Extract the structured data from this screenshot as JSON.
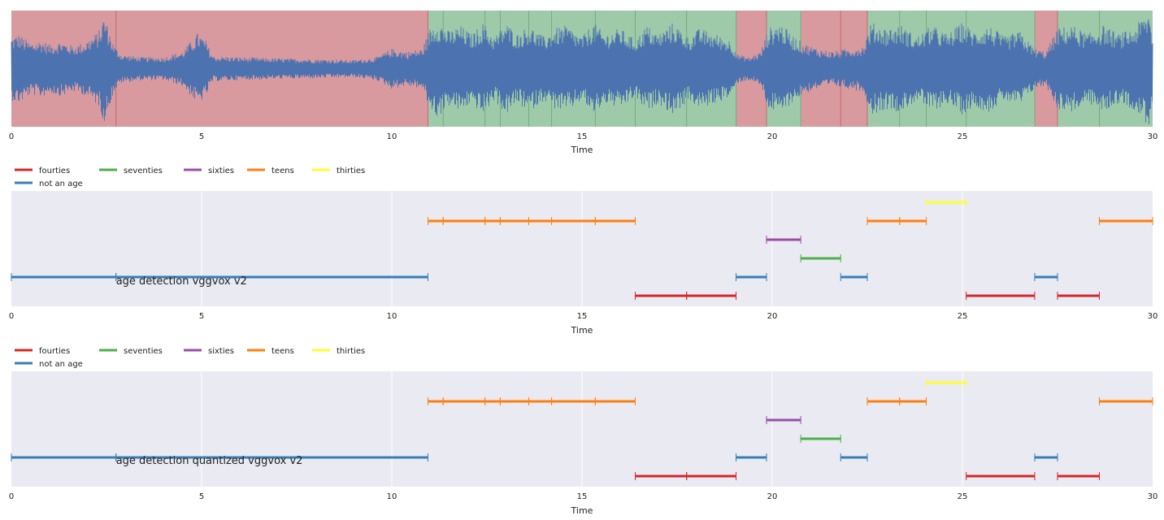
{
  "chart_data": [
    {
      "type": "area",
      "panel": "waveform",
      "xlabel": "Time",
      "xlim": [
        0,
        30
      ],
      "xticks": [
        0,
        5,
        10,
        15,
        20,
        25,
        30
      ],
      "colors": {
        "not_speech": "#d89a9e",
        "speech": "#9fcaa9",
        "wave": "#4c72b0"
      },
      "regions": [
        {
          "start": 0.0,
          "end": 10.95,
          "kind": "not_speech"
        },
        {
          "start": 10.95,
          "end": 19.05,
          "kind": "speech"
        },
        {
          "start": 19.05,
          "end": 19.85,
          "kind": "not_speech"
        },
        {
          "start": 19.85,
          "end": 20.75,
          "kind": "speech"
        },
        {
          "start": 20.75,
          "end": 22.5,
          "kind": "not_speech"
        },
        {
          "start": 22.5,
          "end": 26.9,
          "kind": "speech"
        },
        {
          "start": 26.9,
          "end": 27.5,
          "kind": "not_speech"
        },
        {
          "start": 27.5,
          "end": 30.0,
          "kind": "speech"
        }
      ],
      "boundaries": [
        2.75,
        10.95,
        11.35,
        12.45,
        12.85,
        13.6,
        14.2,
        15.35,
        16.4,
        17.75,
        19.05,
        19.85,
        20.75,
        21.8,
        22.5,
        23.35,
        24.05,
        25.1,
        26.9,
        27.5,
        28.6
      ],
      "envelope": [
        [
          0.0,
          0.55
        ],
        [
          0.2,
          0.6
        ],
        [
          0.5,
          0.45
        ],
        [
          0.8,
          0.5
        ],
        [
          1.0,
          0.42
        ],
        [
          1.3,
          0.48
        ],
        [
          1.6,
          0.4
        ],
        [
          1.9,
          0.45
        ],
        [
          2.1,
          0.55
        ],
        [
          2.3,
          0.65
        ],
        [
          2.45,
          0.95
        ],
        [
          2.55,
          0.7
        ],
        [
          2.7,
          0.4
        ],
        [
          2.9,
          0.25
        ],
        [
          3.2,
          0.22
        ],
        [
          3.5,
          0.2
        ],
        [
          4.0,
          0.2
        ],
        [
          4.5,
          0.3
        ],
        [
          4.9,
          0.62
        ],
        [
          5.1,
          0.5
        ],
        [
          5.3,
          0.22
        ],
        [
          6.0,
          0.2
        ],
        [
          7.0,
          0.18
        ],
        [
          8.0,
          0.17
        ],
        [
          9.0,
          0.15
        ],
        [
          9.6,
          0.2
        ],
        [
          10.0,
          0.35
        ],
        [
          10.4,
          0.3
        ],
        [
          10.8,
          0.35
        ],
        [
          11.0,
          0.7
        ],
        [
          11.2,
          0.85
        ],
        [
          11.5,
          0.65
        ],
        [
          11.8,
          0.75
        ],
        [
          12.1,
          0.6
        ],
        [
          12.4,
          0.8
        ],
        [
          12.7,
          0.55
        ],
        [
          13.0,
          0.8
        ],
        [
          13.3,
          0.6
        ],
        [
          13.6,
          0.75
        ],
        [
          14.0,
          0.55
        ],
        [
          14.3,
          0.7
        ],
        [
          14.6,
          0.75
        ],
        [
          15.0,
          0.55
        ],
        [
          15.3,
          0.8
        ],
        [
          15.6,
          0.6
        ],
        [
          16.0,
          0.7
        ],
        [
          16.4,
          0.5
        ],
        [
          16.7,
          0.75
        ],
        [
          17.0,
          0.6
        ],
        [
          17.4,
          0.8
        ],
        [
          17.8,
          0.55
        ],
        [
          18.1,
          0.7
        ],
        [
          18.5,
          0.6
        ],
        [
          18.9,
          0.5
        ],
        [
          19.1,
          0.25
        ],
        [
          19.4,
          0.2
        ],
        [
          19.7,
          0.3
        ],
        [
          19.9,
          0.7
        ],
        [
          20.2,
          0.8
        ],
        [
          20.5,
          0.6
        ],
        [
          20.8,
          0.45
        ],
        [
          21.2,
          0.35
        ],
        [
          21.6,
          0.3
        ],
        [
          22.0,
          0.35
        ],
        [
          22.4,
          0.4
        ],
        [
          22.6,
          0.8
        ],
        [
          23.0,
          0.7
        ],
        [
          23.4,
          0.75
        ],
        [
          23.8,
          0.55
        ],
        [
          24.2,
          0.75
        ],
        [
          24.6,
          0.6
        ],
        [
          25.0,
          0.8
        ],
        [
          25.3,
          0.65
        ],
        [
          25.7,
          0.75
        ],
        [
          26.1,
          0.55
        ],
        [
          26.5,
          0.65
        ],
        [
          26.9,
          0.35
        ],
        [
          27.2,
          0.3
        ],
        [
          27.5,
          0.7
        ],
        [
          27.9,
          0.75
        ],
        [
          28.3,
          0.6
        ],
        [
          28.7,
          0.75
        ],
        [
          29.1,
          0.6
        ],
        [
          29.5,
          0.7
        ],
        [
          29.9,
          1.0
        ],
        [
          30.0,
          0.6
        ]
      ]
    },
    {
      "type": "segments",
      "panel": "age-detection-vggvox-v2",
      "title": "age detection vggvox v2",
      "xlabel": "Time",
      "xlim": [
        0,
        30
      ],
      "xticks": [
        0,
        5,
        10,
        15,
        20,
        25,
        30
      ],
      "legend": [
        {
          "label": "fourties",
          "color": "#d62728"
        },
        {
          "label": "seventies",
          "color": "#4daf4a"
        },
        {
          "label": "sixties",
          "color": "#984ea3"
        },
        {
          "label": "teens",
          "color": "#ff7f0e"
        },
        {
          "label": "thirties",
          "color": "#ffff33"
        },
        {
          "label": "not an age",
          "color": "#377eb8"
        }
      ],
      "rows": [
        "thirties",
        "teens",
        "sixties",
        "seventies",
        "not an age",
        "fourties"
      ],
      "segments": [
        {
          "label": "thirties",
          "start": 24.05,
          "end": 25.1
        },
        {
          "label": "teens",
          "start": 10.95,
          "end": 11.35
        },
        {
          "label": "teens",
          "start": 11.35,
          "end": 12.45
        },
        {
          "label": "teens",
          "start": 12.45,
          "end": 12.85
        },
        {
          "label": "teens",
          "start": 12.85,
          "end": 13.6
        },
        {
          "label": "teens",
          "start": 13.6,
          "end": 14.2
        },
        {
          "label": "teens",
          "start": 14.2,
          "end": 15.35
        },
        {
          "label": "teens",
          "start": 15.35,
          "end": 16.4
        },
        {
          "label": "teens",
          "start": 22.5,
          "end": 23.35
        },
        {
          "label": "teens",
          "start": 23.35,
          "end": 24.05
        },
        {
          "label": "teens",
          "start": 28.6,
          "end": 30.0
        },
        {
          "label": "sixties",
          "start": 19.85,
          "end": 20.75
        },
        {
          "label": "seventies",
          "start": 20.75,
          "end": 21.8
        },
        {
          "label": "not an age",
          "start": 0.0,
          "end": 2.75
        },
        {
          "label": "not an age",
          "start": 2.75,
          "end": 10.95
        },
        {
          "label": "not an age",
          "start": 19.05,
          "end": 19.85
        },
        {
          "label": "not an age",
          "start": 21.8,
          "end": 22.5
        },
        {
          "label": "not an age",
          "start": 26.9,
          "end": 27.5
        },
        {
          "label": "fourties",
          "start": 16.4,
          "end": 17.75
        },
        {
          "label": "fourties",
          "start": 17.75,
          "end": 19.05
        },
        {
          "label": "fourties",
          "start": 25.1,
          "end": 26.9
        },
        {
          "label": "fourties",
          "start": 27.5,
          "end": 28.6
        }
      ]
    },
    {
      "type": "segments",
      "panel": "age-detection-quantized-vggvox-v2",
      "title": "age detection quantized vggvox v2",
      "xlabel": "Time",
      "xlim": [
        0,
        30
      ],
      "xticks": [
        0,
        5,
        10,
        15,
        20,
        25,
        30
      ],
      "legend": [
        {
          "label": "fourties",
          "color": "#d62728"
        },
        {
          "label": "seventies",
          "color": "#4daf4a"
        },
        {
          "label": "sixties",
          "color": "#984ea3"
        },
        {
          "label": "teens",
          "color": "#ff7f0e"
        },
        {
          "label": "thirties",
          "color": "#ffff33"
        },
        {
          "label": "not an age",
          "color": "#377eb8"
        }
      ],
      "rows": [
        "thirties",
        "teens",
        "sixties",
        "seventies",
        "not an age",
        "fourties"
      ],
      "segments": [
        {
          "label": "thirties",
          "start": 24.05,
          "end": 25.1
        },
        {
          "label": "teens",
          "start": 10.95,
          "end": 11.35
        },
        {
          "label": "teens",
          "start": 11.35,
          "end": 12.45
        },
        {
          "label": "teens",
          "start": 12.45,
          "end": 12.85
        },
        {
          "label": "teens",
          "start": 12.85,
          "end": 13.6
        },
        {
          "label": "teens",
          "start": 13.6,
          "end": 14.2
        },
        {
          "label": "teens",
          "start": 14.2,
          "end": 15.35
        },
        {
          "label": "teens",
          "start": 15.35,
          "end": 16.4
        },
        {
          "label": "teens",
          "start": 22.5,
          "end": 23.35
        },
        {
          "label": "teens",
          "start": 23.35,
          "end": 24.05
        },
        {
          "label": "teens",
          "start": 28.6,
          "end": 30.0
        },
        {
          "label": "sixties",
          "start": 19.85,
          "end": 20.75
        },
        {
          "label": "seventies",
          "start": 20.75,
          "end": 21.8
        },
        {
          "label": "not an age",
          "start": 0.0,
          "end": 2.75
        },
        {
          "label": "not an age",
          "start": 2.75,
          "end": 10.95
        },
        {
          "label": "not an age",
          "start": 19.05,
          "end": 19.85
        },
        {
          "label": "not an age",
          "start": 21.8,
          "end": 22.5
        },
        {
          "label": "not an age",
          "start": 26.9,
          "end": 27.5
        },
        {
          "label": "fourties",
          "start": 16.4,
          "end": 17.75
        },
        {
          "label": "fourties",
          "start": 17.75,
          "end": 19.05
        },
        {
          "label": "fourties",
          "start": 25.1,
          "end": 26.9
        },
        {
          "label": "fourties",
          "start": 27.5,
          "end": 28.6
        }
      ]
    }
  ]
}
